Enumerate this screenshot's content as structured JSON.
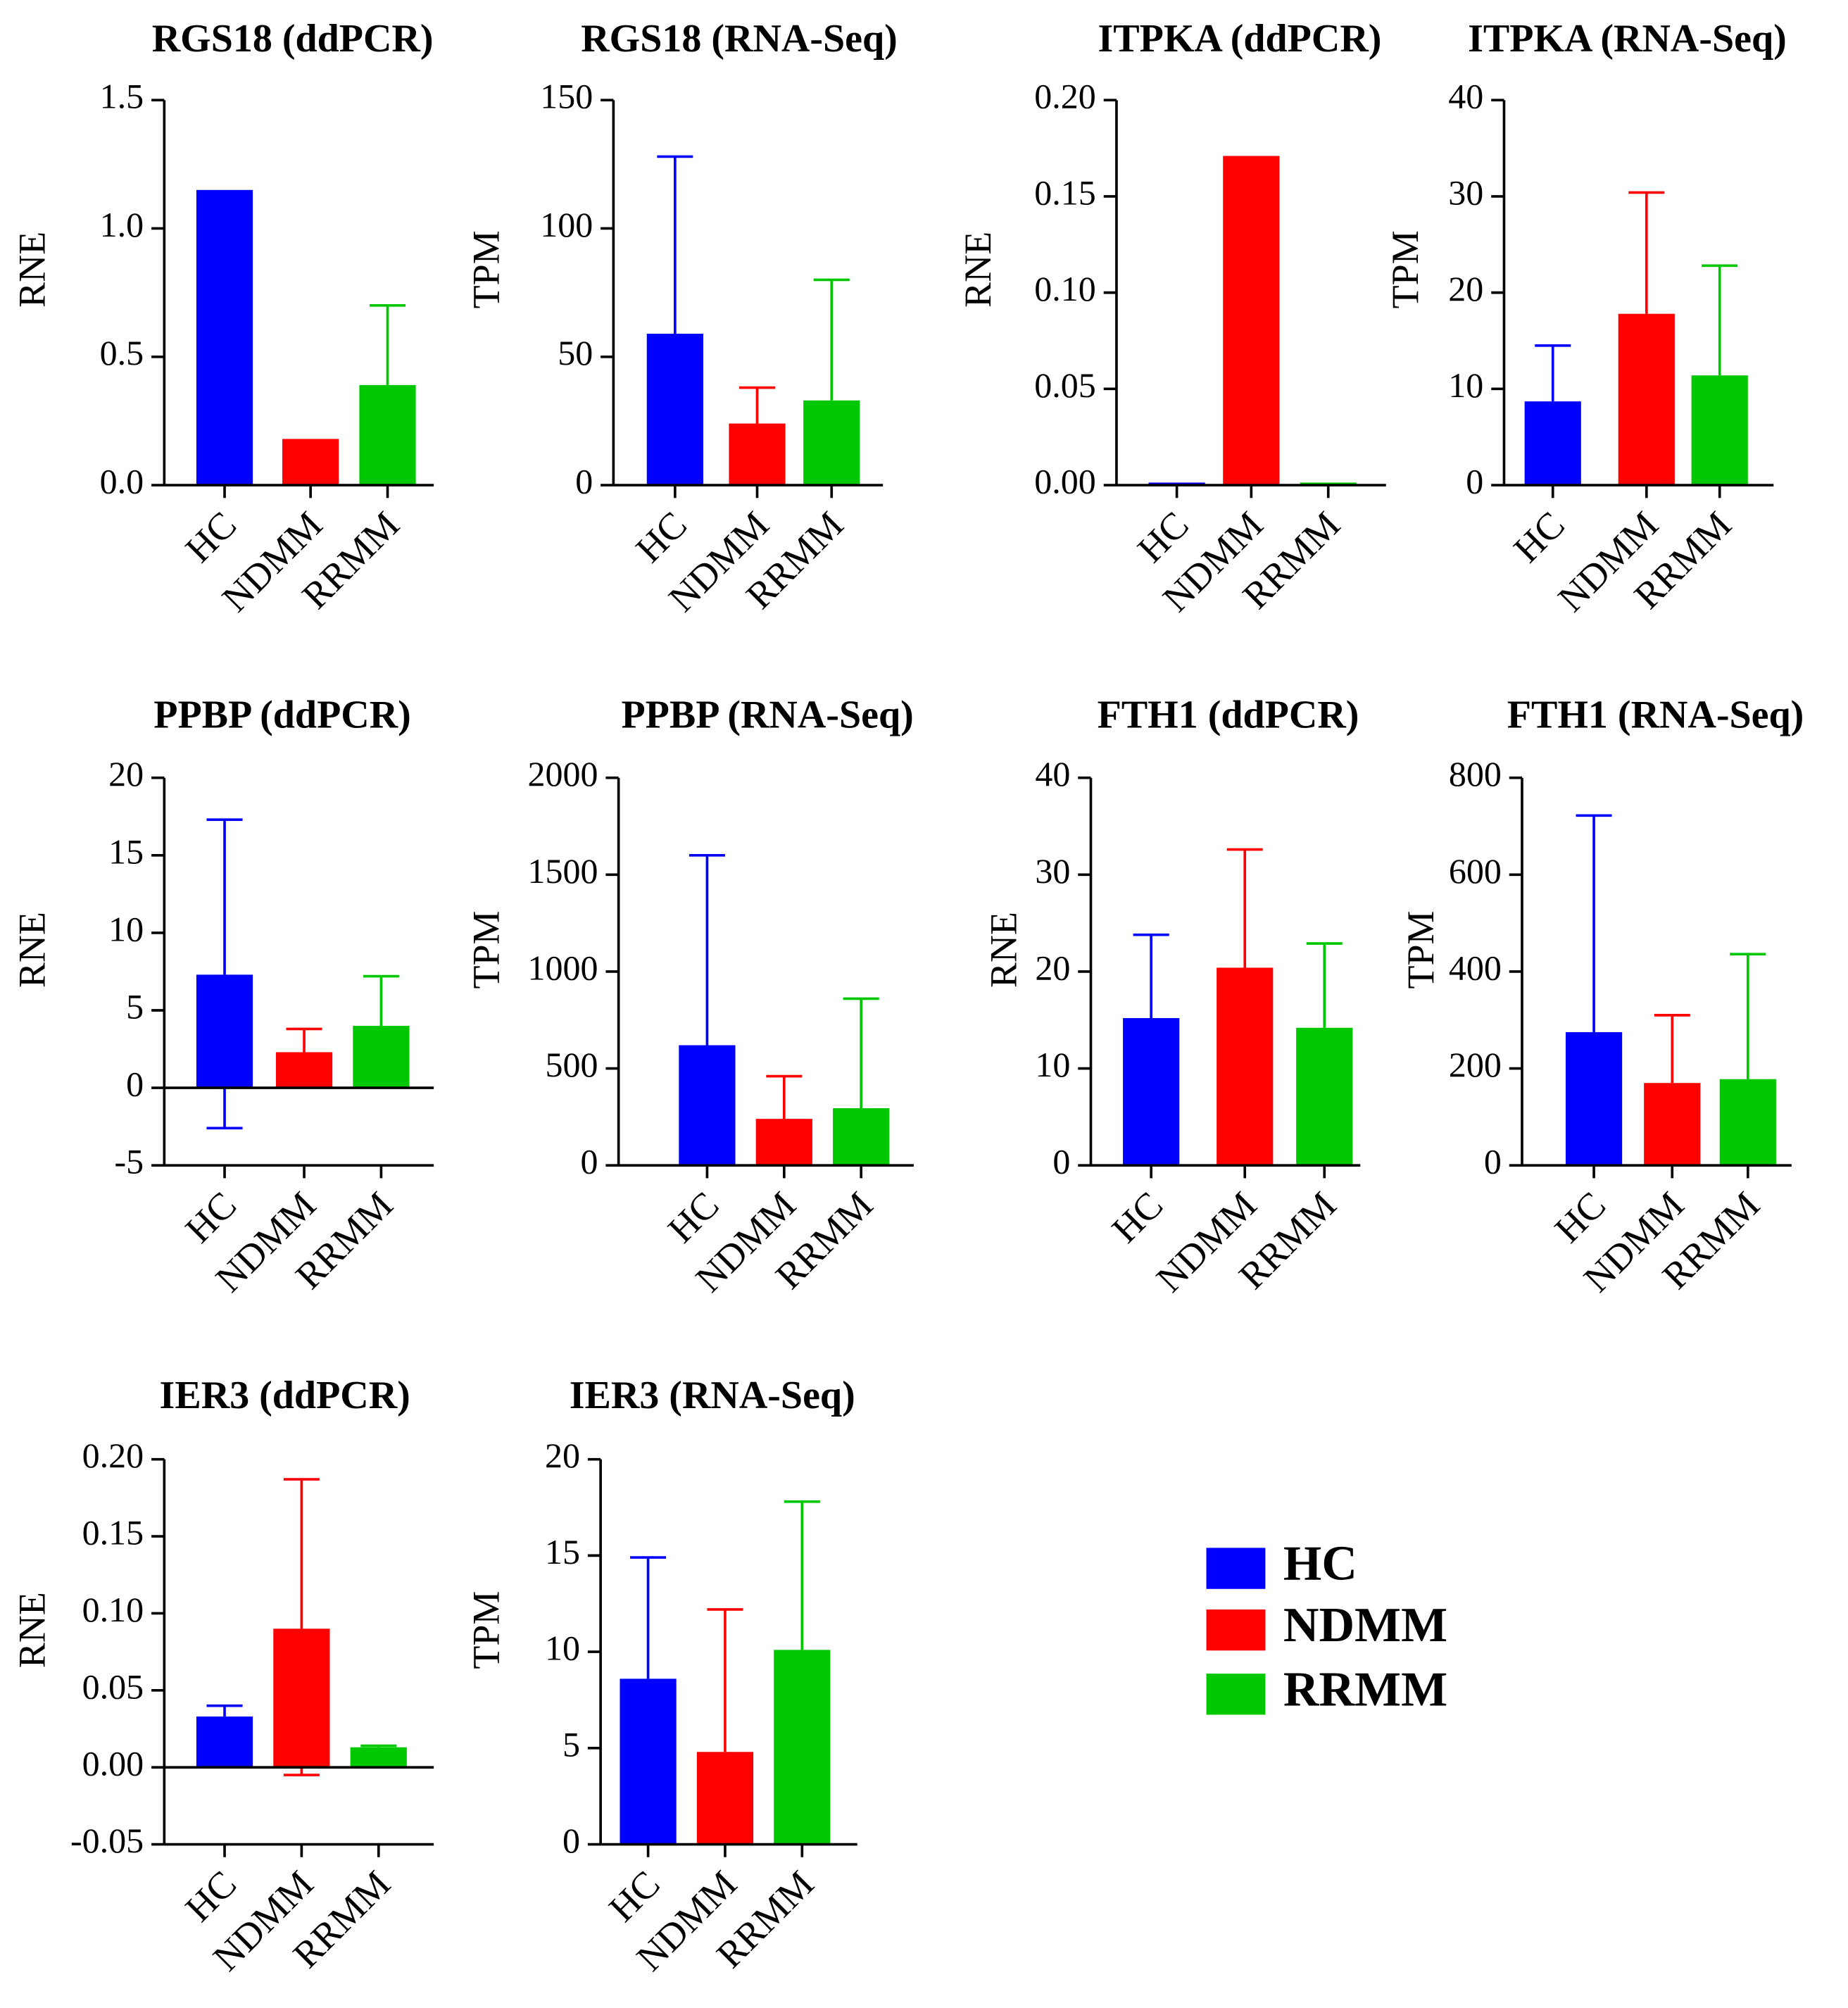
{
  "colors": {
    "HC": "#0000ff",
    "NDMM": "#ff0000",
    "RRMM": "#00c800"
  },
  "legend": {
    "items": [
      "HC",
      "NDMM",
      "RRMM"
    ]
  },
  "chart_data": [
    {
      "type": "bar",
      "title": "RGS18 (ddPCR)",
      "ylabel": "RNE",
      "categories": [
        "HC",
        "NDMM",
        "RRMM"
      ],
      "values": [
        1.15,
        0.18,
        0.39
      ],
      "errors": [
        null,
        null,
        0.7
      ],
      "ylim": [
        0,
        1.5
      ],
      "yticks": [
        0,
        0.5,
        1,
        1.5
      ],
      "ytick_labels": [
        "0.0",
        "0.5",
        "1.0",
        "1.5"
      ]
    },
    {
      "type": "bar",
      "title": "RGS18 (RNA-Seq)",
      "ylabel": "TPM",
      "categories": [
        "HC",
        "NDMM",
        "RRMM"
      ],
      "values": [
        59,
        24,
        33
      ],
      "errors": [
        128,
        38,
        80
      ],
      "ylim": [
        0,
        150
      ],
      "yticks": [
        0,
        50,
        100,
        150
      ],
      "ytick_labels": [
        "0",
        "50",
        "100",
        "150"
      ]
    },
    {
      "type": "bar",
      "title": "ITPKA (ddPCR)",
      "ylabel": "RNE",
      "categories": [
        "HC",
        "NDMM",
        "RRMM"
      ],
      "values": [
        0.0,
        0.171,
        0.001
      ],
      "errors": [
        null,
        null,
        null
      ],
      "ylim": [
        0,
        0.2
      ],
      "yticks": [
        0,
        0.05,
        0.1,
        0.15,
        0.2
      ],
      "ytick_labels": [
        "0.00",
        "0.05",
        "0.10",
        "0.15",
        "0.20"
      ]
    },
    {
      "type": "bar",
      "title": "ITPKA (RNA-Seq)",
      "ylabel": "TPM",
      "categories": [
        "HC",
        "NDMM",
        "RRMM"
      ],
      "values": [
        8.7,
        17.8,
        11.4
      ],
      "errors": [
        14.5,
        30.4,
        22.8
      ],
      "ylim": [
        0,
        40
      ],
      "yticks": [
        0,
        10,
        20,
        30,
        40
      ],
      "ytick_labels": [
        "0",
        "10",
        "20",
        "30",
        "40"
      ]
    },
    {
      "type": "bar",
      "title": "PPBP (ddPCR)",
      "ylabel": "RNE",
      "categories": [
        "HC",
        "NDMM",
        "RRMM"
      ],
      "values": [
        7.3,
        2.3,
        4.0
      ],
      "errors": [
        17.3,
        3.8,
        7.2
      ],
      "errors_low": [
        -2.6,
        null,
        null
      ],
      "ylim": [
        -5,
        20
      ],
      "yticks": [
        -5,
        0,
        5,
        10,
        15,
        20
      ],
      "ytick_labels": [
        "-5",
        "0",
        "5",
        "10",
        "15",
        "20"
      ]
    },
    {
      "type": "bar",
      "title": "PPBP (RNA-Seq)",
      "ylabel": "TPM",
      "categories": [
        "HC",
        "NDMM",
        "RRMM"
      ],
      "values": [
        620,
        240,
        295
      ],
      "errors": [
        1600,
        460,
        860
      ],
      "ylim": [
        0,
        2000
      ],
      "yticks": [
        0,
        500,
        1000,
        1500,
        2000
      ],
      "ytick_labels": [
        "0",
        "500",
        "1000",
        "1500",
        "2000"
      ]
    },
    {
      "type": "bar",
      "title": "FTH1 (ddPCR)",
      "ylabel": "RNE",
      "categories": [
        "HC",
        "NDMM",
        "RRMM"
      ],
      "values": [
        15.2,
        20.4,
        14.2
      ],
      "errors": [
        23.8,
        32.6,
        22.9
      ],
      "ylim": [
        0,
        40
      ],
      "yticks": [
        0,
        10,
        20,
        30,
        40
      ],
      "ytick_labels": [
        "0",
        "10",
        "20",
        "30",
        "40"
      ]
    },
    {
      "type": "bar",
      "title": "FTH1 (RNA-Seq)",
      "ylabel": "TPM",
      "categories": [
        "HC",
        "NDMM",
        "RRMM"
      ],
      "values": [
        275,
        170,
        178
      ],
      "errors": [
        722,
        310,
        436
      ],
      "ylim": [
        0,
        800
      ],
      "yticks": [
        0,
        200,
        400,
        600,
        800
      ],
      "ytick_labels": [
        "0",
        "200",
        "400",
        "600",
        "800"
      ]
    },
    {
      "type": "bar",
      "title": "IER3 (ddPCR)",
      "ylabel": "RNE",
      "categories": [
        "HC",
        "NDMM",
        "RRMM"
      ],
      "values": [
        0.033,
        0.09,
        0.013
      ],
      "errors": [
        0.04,
        0.187,
        0.014
      ],
      "errors_low": [
        null,
        -0.005,
        null
      ],
      "ylim": [
        -0.05,
        0.2
      ],
      "yticks": [
        -0.05,
        0,
        0.05,
        0.1,
        0.15,
        0.2
      ],
      "ytick_labels": [
        "-0.05",
        "0.00",
        "0.05",
        "0.10",
        "0.15",
        "0.20"
      ]
    },
    {
      "type": "bar",
      "title": "IER3 (RNA-Seq)",
      "ylabel": "TPM",
      "categories": [
        "HC",
        "NDMM",
        "RRMM"
      ],
      "values": [
        8.6,
        4.8,
        10.1
      ],
      "errors": [
        14.9,
        12.2,
        17.8
      ],
      "ylim": [
        0,
        20
      ],
      "yticks": [
        0,
        5,
        10,
        15,
        20
      ],
      "ytick_labels": [
        "0",
        "5",
        "10",
        "15",
        "20"
      ]
    }
  ]
}
